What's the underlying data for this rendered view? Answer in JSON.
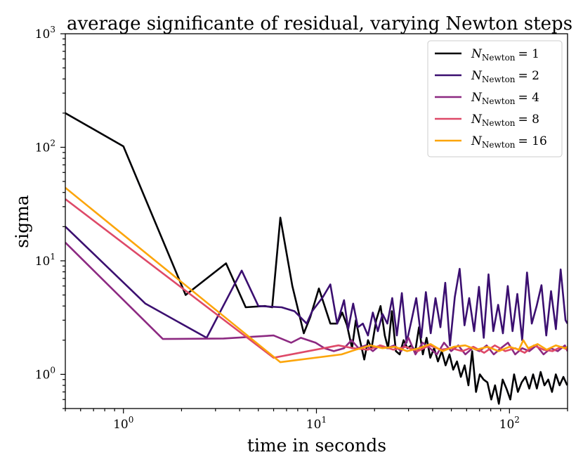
{
  "chart_data": {
    "type": "line",
    "title": "average significante of residual, varying Newton steps",
    "xlabel": "time in seconds",
    "ylabel": "sigma",
    "xscale": "log",
    "yscale": "log",
    "xlim": [
      0.5,
      200
    ],
    "ylim": [
      0.5,
      1000
    ],
    "x_ticks": [
      {
        "base": "10",
        "exp": "0",
        "value": 1
      },
      {
        "base": "10",
        "exp": "1",
        "value": 10
      },
      {
        "base": "10",
        "exp": "2",
        "value": 100
      }
    ],
    "y_ticks": [
      {
        "base": "10",
        "exp": "0",
        "value": 1
      },
      {
        "base": "10",
        "exp": "1",
        "value": 10
      },
      {
        "base": "10",
        "exp": "2",
        "value": 100
      },
      {
        "base": "10",
        "exp": "3",
        "value": 1000
      }
    ],
    "legend_position": "top-right",
    "series": [
      {
        "name": "N_Newton = 1",
        "legend": {
          "symbol": "N",
          "sub": "Newton",
          "rhs": "= 1"
        },
        "color": "#000004",
        "x": [
          0.5,
          1.0,
          2.1,
          3.4,
          4.3,
          5.4,
          5.9,
          6.5,
          7.5,
          8.6,
          9.3,
          10.3,
          11.8,
          12.8,
          13.6,
          14.4,
          15.3,
          16.0,
          16.8,
          17.7,
          18.5,
          19.3,
          20.4,
          21.5,
          22.6,
          23.5,
          24.6,
          25.8,
          27.0,
          28.3,
          29.6,
          31.0,
          32.5,
          34.0,
          35.6,
          37.2,
          38.9,
          40.7,
          42.6,
          44.6,
          46.7,
          48.9,
          51.1,
          53.5,
          56.0,
          58.6,
          61.3,
          64.1,
          67.1,
          70.2,
          73.5,
          76.9,
          80.5,
          84.2,
          88.1,
          92.2,
          96.5,
          101,
          105.7,
          110.6,
          115.7,
          121.1,
          126.7,
          132.6,
          138.7,
          145.1,
          151.8,
          158.9,
          166.2,
          173.9,
          182,
          190.4,
          199.2
        ],
        "values": [
          200,
          102,
          5.0,
          9.5,
          3.9,
          4.0,
          3.9,
          24,
          6.0,
          2.3,
          3.2,
          5.7,
          2.8,
          2.8,
          3.5,
          2.7,
          1.7,
          3.0,
          2.0,
          1.35,
          2.0,
          1.7,
          3.0,
          4.0,
          2.2,
          1.7,
          3.6,
          1.6,
          1.5,
          2.0,
          1.7,
          1.8,
          1.6,
          2.6,
          1.5,
          2.1,
          1.4,
          1.7,
          1.3,
          1.6,
          1.2,
          1.5,
          1.1,
          1.3,
          0.95,
          1.2,
          0.8,
          1.6,
          0.7,
          1.0,
          0.9,
          0.85,
          0.6,
          0.8,
          0.55,
          0.9,
          0.75,
          0.6,
          1.0,
          0.7,
          0.85,
          0.95,
          0.75,
          1.0,
          0.75,
          1.05,
          0.8,
          0.9,
          0.7,
          1.0,
          0.8,
          0.95,
          0.8
        ]
      },
      {
        "name": "N_Newton = 2",
        "legend": {
          "symbol": "N",
          "sub": "Newton",
          "rhs": "= 2"
        },
        "color": "#3b0f70",
        "x": [
          0.5,
          1.3,
          2.7,
          4.1,
          5.0,
          6.6,
          7.7,
          8.9,
          9.5,
          10.8,
          11.8,
          12.8,
          13.9,
          14.6,
          15.5,
          16.4,
          17.4,
          18.5,
          19.6,
          20.8,
          22.0,
          23.3,
          24.7,
          26.1,
          27.7,
          29.3,
          31.1,
          32.9,
          34.9,
          36.9,
          39.1,
          41.4,
          43.9,
          46.5,
          49.2,
          52.1,
          55.2,
          58.5,
          61.9,
          65.6,
          69.5,
          73.6,
          77.9,
          82.5,
          87.4,
          92.5,
          98.0,
          103.8,
          109.9,
          116.4,
          123.3,
          130.6,
          138.3,
          146.5,
          155.1,
          164.3,
          174.0,
          184.3,
          195.2,
          199.9
        ],
        "values": [
          20,
          4.2,
          2.1,
          8.2,
          4.0,
          3.9,
          3.6,
          2.8,
          3.6,
          4.8,
          6.2,
          2.8,
          4.5,
          2.5,
          4.2,
          2.6,
          2.8,
          2.2,
          3.5,
          2.4,
          3.4,
          2.8,
          4.7,
          2.2,
          5.2,
          1.9,
          3.0,
          4.7,
          2.1,
          5.3,
          2.3,
          4.7,
          2.6,
          6.4,
          1.8,
          4.8,
          8.5,
          2.7,
          4.7,
          2.4,
          5.9,
          2.1,
          7.6,
          2.4,
          4.1,
          2.3,
          6.0,
          2.4,
          5.1,
          2.0,
          7.9,
          2.8,
          4.0,
          6.1,
          2.2,
          5.4,
          2.5,
          8.4,
          3.0,
          2.8
        ]
      },
      {
        "name": "N_Newton = 4",
        "legend": {
          "symbol": "N",
          "sub": "Newton",
          "rhs": "= 4"
        },
        "color": "#8c2981",
        "x": [
          0.5,
          1.6,
          3.3,
          6.0,
          7.4,
          8.3,
          9.9,
          11.0,
          12.3,
          13.9,
          15.2,
          16.5,
          18.0,
          19.6,
          21.3,
          23.2,
          25.3,
          27.5,
          30.0,
          32.6,
          35.5,
          38.7,
          42.1,
          45.8,
          49.9,
          54.3,
          59.1,
          64.3,
          70.0,
          76.2,
          82.9,
          90.3,
          98.3,
          107,
          116.5,
          126.8,
          138,
          150.2,
          163.5,
          178,
          193.7,
          199.9
        ],
        "values": [
          14.5,
          2.05,
          2.07,
          2.2,
          1.9,
          2.1,
          1.9,
          1.7,
          1.6,
          1.7,
          2.0,
          1.7,
          1.8,
          1.6,
          1.8,
          1.7,
          1.8,
          1.6,
          2.1,
          1.5,
          1.9,
          1.7,
          1.5,
          1.9,
          1.6,
          1.8,
          1.5,
          1.7,
          1.6,
          1.8,
          1.5,
          1.7,
          1.9,
          1.5,
          1.7,
          1.6,
          1.8,
          1.5,
          1.7,
          1.6,
          1.8,
          1.6
        ]
      },
      {
        "name": "N_Newton = 8",
        "legend": {
          "symbol": "N",
          "sub": "Newton",
          "rhs": "= 8"
        },
        "color": "#de4968",
        "x": [
          0.5,
          6.0,
          13.0,
          15.5,
          18.5,
          21.5,
          25.0,
          29.0,
          33.5,
          38.5,
          44.0,
          50.0,
          57.0,
          65.0,
          74.0,
          84.0,
          95.0,
          107,
          120,
          134,
          150,
          167,
          186,
          199.9
        ],
        "values": [
          35,
          1.4,
          1.8,
          1.7,
          1.65,
          1.8,
          1.65,
          1.75,
          1.6,
          1.8,
          1.65,
          1.7,
          1.6,
          1.75,
          1.55,
          1.8,
          1.6,
          1.7,
          1.55,
          1.8,
          1.65,
          1.6,
          1.75,
          1.65
        ]
      },
      {
        "name": "N_Newton = 16",
        "legend": {
          "symbol": "N",
          "sub": "Newton",
          "rhs": "= 16"
        },
        "color": "#fca50a",
        "x": [
          0.5,
          6.5,
          13.5,
          16.0,
          19.0,
          22.0,
          25.5,
          29.5,
          34.0,
          39.0,
          45.0,
          51.5,
          59.0,
          67.5,
          77.0,
          88.0,
          100,
          112,
          118,
          125,
          140,
          156,
          174,
          194,
          199.9
        ],
        "values": [
          44,
          1.28,
          1.5,
          1.65,
          1.8,
          1.7,
          1.75,
          1.6,
          1.7,
          1.85,
          1.6,
          1.75,
          1.8,
          1.65,
          1.75,
          1.6,
          1.75,
          1.65,
          2.0,
          1.7,
          1.85,
          1.65,
          1.8,
          1.7,
          1.75
        ]
      }
    ]
  }
}
